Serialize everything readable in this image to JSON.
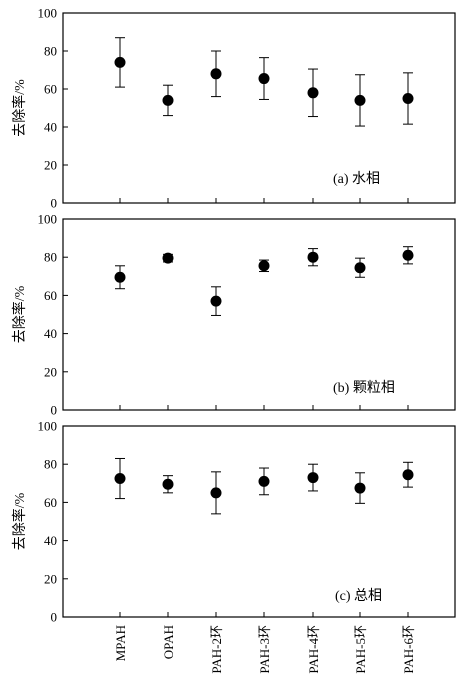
{
  "chart_data": [
    {
      "type": "scatter",
      "title": "",
      "annotation": "(a) 水相",
      "ylabel": "去除率/%",
      "xlabel": "",
      "ylim": [
        0,
        100
      ],
      "yticks": [
        0,
        20,
        40,
        60,
        80,
        100
      ],
      "categories": [
        "MPAH",
        "OPAH",
        "PAH-2环",
        "PAH-3环",
        "PAH-4环",
        "PAH-5环",
        "PAH-6环"
      ],
      "values": [
        74,
        54,
        68,
        65.5,
        58,
        54,
        55
      ],
      "error": [
        13,
        8,
        12,
        11,
        12.5,
        13.5,
        13.5
      ],
      "grid": false
    },
    {
      "type": "scatter",
      "title": "",
      "annotation": "(b) 颗粒相",
      "ylabel": "去除率/%",
      "xlabel": "",
      "ylim": [
        0,
        100
      ],
      "yticks": [
        0,
        20,
        40,
        60,
        80,
        100
      ],
      "categories": [
        "MPAH",
        "OPAH",
        "PAH-2环",
        "PAH-3环",
        "PAH-4环",
        "PAH-5环",
        "PAH-6环"
      ],
      "values": [
        69.5,
        79.5,
        57,
        75.5,
        80,
        74.5,
        81
      ],
      "error": [
        6,
        2,
        7.5,
        3,
        4.5,
        5,
        4.5
      ],
      "grid": false
    },
    {
      "type": "scatter",
      "title": "",
      "annotation": "(c) 总相",
      "ylabel": "去除率/%",
      "xlabel": "",
      "ylim": [
        0,
        100
      ],
      "yticks": [
        0,
        20,
        40,
        60,
        80,
        100
      ],
      "categories": [
        "MPAH",
        "OPAH",
        "PAH-2环",
        "PAH-3环",
        "PAH-4环",
        "PAH-5环",
        "PAH-6环"
      ],
      "values": [
        72.5,
        69.5,
        65,
        71,
        73,
        67.5,
        74.5
      ],
      "error": [
        10.5,
        4.5,
        11,
        7,
        7,
        8,
        6.5
      ],
      "grid": false
    }
  ],
  "colors": {
    "axis": "#000000",
    "marker": "#000000"
  }
}
